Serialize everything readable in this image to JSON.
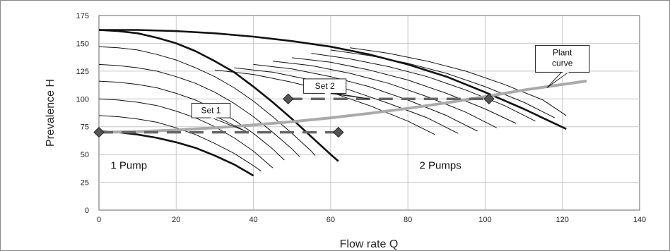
{
  "chart_data": {
    "type": "line",
    "xlabel": "Flow rate Q",
    "ylabel": "Prevalence H",
    "xlim": [
      0,
      140
    ],
    "ylim": [
      0,
      175
    ],
    "xticks": [
      0,
      20,
      40,
      60,
      80,
      100,
      120,
      140
    ],
    "yticks": [
      0,
      25,
      50,
      75,
      100,
      125,
      150,
      175
    ],
    "grid": true,
    "region_labels": [
      {
        "text": "1 Pump",
        "x": 3,
        "y": 37
      },
      {
        "text": "2 Pumps",
        "x": 83,
        "y": 37
      }
    ],
    "curve_color": "#111111",
    "plant_color": "#aaaaaa",
    "set_color": "#666666",
    "marker_color": "#555555",
    "single_pump_curves": [
      {
        "x": [
          0,
          5,
          10,
          15,
          20,
          25,
          30,
          35,
          40
        ],
        "y": [
          71,
          70,
          68,
          65,
          61,
          56,
          49,
          41,
          31
        ],
        "thick": true
      },
      {
        "x": [
          0,
          5,
          10,
          15,
          20,
          25,
          30,
          35,
          40,
          42
        ],
        "y": [
          85,
          84,
          82,
          79,
          74,
          68,
          60,
          51,
          40,
          35
        ],
        "thick": false
      },
      {
        "x": [
          0,
          5,
          10,
          15,
          20,
          25,
          30,
          35,
          40,
          45
        ],
        "y": [
          100,
          99,
          97,
          94,
          89,
          83,
          75,
          65,
          53,
          38
        ],
        "thick": false
      },
      {
        "x": [
          0,
          5,
          10,
          15,
          20,
          25,
          30,
          35,
          40,
          45,
          48
        ],
        "y": [
          116,
          115,
          113,
          110,
          105,
          99,
          91,
          81,
          69,
          55,
          45
        ],
        "thick": false
      },
      {
        "x": [
          0,
          5,
          10,
          15,
          20,
          25,
          30,
          35,
          40,
          45,
          50,
          52
        ],
        "y": [
          131,
          130,
          128,
          125,
          120,
          114,
          106,
          96,
          84,
          70,
          55,
          48
        ],
        "thick": false
      },
      {
        "x": [
          0,
          5,
          10,
          15,
          20,
          25,
          30,
          35,
          40,
          45,
          50,
          55,
          56
        ],
        "y": [
          147,
          146,
          144,
          140,
          135,
          128,
          120,
          110,
          98,
          84,
          69,
          53,
          49
        ],
        "thick": false
      },
      {
        "x": [
          0,
          5,
          10,
          15,
          20,
          25,
          30,
          35,
          40,
          45,
          50,
          55,
          60,
          62
        ],
        "y": [
          162,
          161,
          159,
          155,
          150,
          143,
          134,
          124,
          111,
          97,
          82,
          66,
          50,
          44
        ],
        "thick": true
      }
    ],
    "two_pump_curves": [
      {
        "x": [
          30,
          40,
          50,
          60,
          70,
          80,
          87
        ],
        "y": [
          126,
          122,
          115,
          106,
          94,
          80,
          68
        ],
        "thick": false
      },
      {
        "x": [
          35,
          45,
          55,
          65,
          75,
          85,
          93
        ],
        "y": [
          128,
          124,
          117,
          108,
          96,
          83,
          69
        ],
        "thick": false
      },
      {
        "x": [
          40,
          50,
          60,
          70,
          80,
          90,
          98
        ],
        "y": [
          131,
          127,
          120,
          111,
          99,
          85,
          71
        ],
        "thick": false
      },
      {
        "x": [
          45,
          55,
          65,
          75,
          85,
          95,
          103
        ],
        "y": [
          134,
          130,
          123,
          114,
          102,
          88,
          74
        ],
        "thick": false
      },
      {
        "x": [
          50,
          60,
          70,
          80,
          90,
          100,
          108
        ],
        "y": [
          137,
          133,
          126,
          117,
          105,
          91,
          78
        ],
        "thick": false
      },
      {
        "x": [
          55,
          65,
          75,
          85,
          95,
          105,
          113
        ],
        "y": [
          141,
          136,
          129,
          120,
          108,
          94,
          80
        ],
        "thick": false
      },
      {
        "x": [
          60,
          70,
          80,
          90,
          100,
          110,
          118
        ],
        "y": [
          144,
          139,
          132,
          123,
          111,
          97,
          83
        ],
        "thick": false
      },
      {
        "x": [
          65,
          75,
          85,
          95,
          105,
          115,
          121
        ],
        "y": [
          146,
          141,
          134,
          125,
          113,
          99,
          85
        ],
        "thick": false
      },
      {
        "x": [
          0,
          10,
          20,
          30,
          40,
          50,
          60,
          70,
          80,
          90,
          100,
          110,
          121
        ],
        "y": [
          162,
          162,
          161,
          159,
          156,
          152,
          147,
          140,
          131,
          120,
          106,
          91,
          73
        ],
        "thick": true
      }
    ],
    "plant_curve": {
      "x": [
        0,
        10,
        20,
        30,
        40,
        50,
        60,
        70,
        80,
        90,
        100,
        110,
        120,
        126
      ],
      "y": [
        70,
        70.5,
        72,
        74,
        76.5,
        79.5,
        83,
        87,
        91.5,
        96.5,
        102,
        108,
        113,
        116
      ]
    },
    "set_lines": [
      {
        "x": [
          0,
          62
        ],
        "y": [
          70,
          70
        ]
      },
      {
        "x": [
          49,
          101
        ],
        "y": [
          100,
          100
        ]
      }
    ],
    "markers": [
      {
        "x": 0,
        "y": 70
      },
      {
        "x": 62,
        "y": 70
      },
      {
        "x": 49,
        "y": 100
      },
      {
        "x": 101,
        "y": 100
      }
    ],
    "callouts": [
      {
        "lines": [
          "Set 1"
        ],
        "box_x": 24,
        "box_y": 96,
        "box_w": 10,
        "box_h": 13,
        "tip_x": 38,
        "tip_y": 71
      },
      {
        "lines": [
          "Set 2"
        ],
        "box_x": 53,
        "box_y": 118,
        "box_w": 11,
        "box_h": 13,
        "tip_x": 70,
        "tip_y": 100
      },
      {
        "lines": [
          "Plant",
          "curve"
        ],
        "box_x": 113,
        "box_y": 148,
        "box_w": 14,
        "box_h": 24,
        "tip_x": 116,
        "tip_y": 110
      }
    ]
  }
}
